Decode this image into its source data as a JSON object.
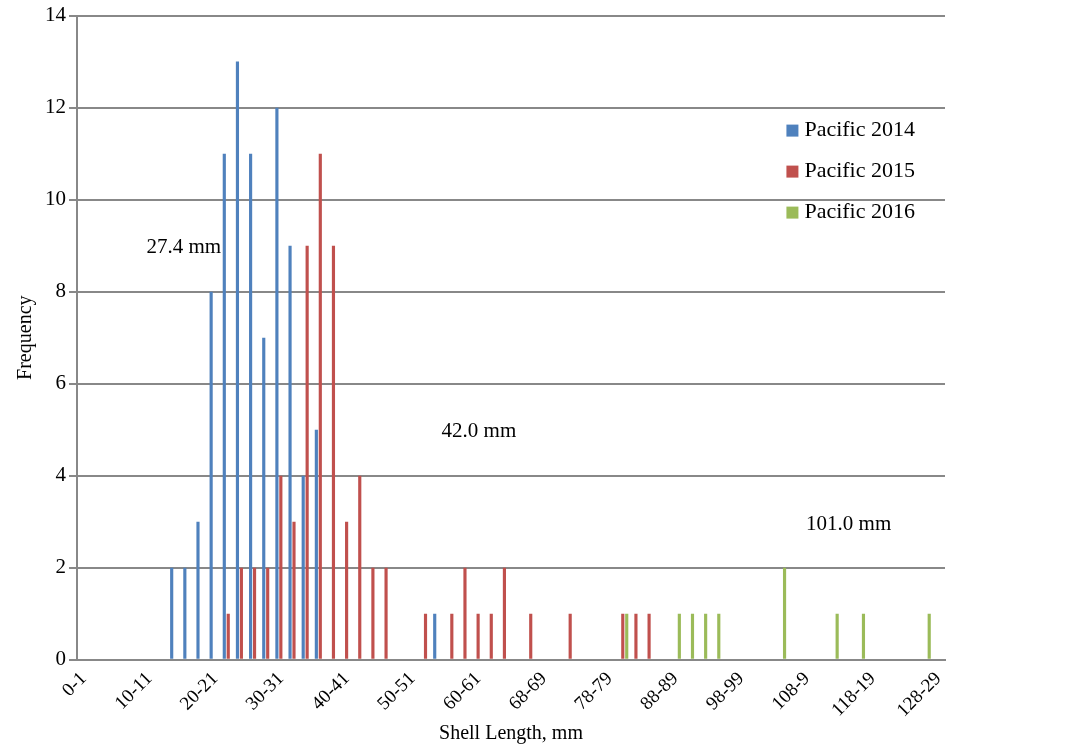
{
  "chart_data": {
    "type": "bar",
    "xlabel": "Shell Length, mm",
    "ylabel": "Frequency",
    "categories": [
      "0-1",
      null,
      null,
      null,
      null,
      "10-11",
      null,
      null,
      null,
      null,
      "20-21",
      null,
      null,
      null,
      null,
      "30-31",
      null,
      null,
      null,
      null,
      "40-41",
      null,
      null,
      null,
      null,
      "50-51",
      null,
      null,
      null,
      null,
      "60-61",
      null,
      null,
      null,
      null,
      "68-69",
      null,
      null,
      null,
      null,
      "78-79",
      null,
      null,
      null,
      null,
      "88-89",
      null,
      null,
      null,
      null,
      "98-99",
      null,
      null,
      null,
      null,
      "108-9",
      null,
      null,
      null,
      null,
      "118-19",
      null,
      null,
      null,
      null,
      "128-29"
    ],
    "series": [
      {
        "name": "Pacific 2014",
        "color": "#4f81bd",
        "values": [
          0,
          0,
          0,
          0,
          0,
          0,
          0,
          2,
          2,
          3,
          8,
          11,
          13,
          11,
          7,
          12,
          9,
          4,
          5,
          0,
          0,
          0,
          0,
          0,
          0,
          0,
          0,
          1,
          0,
          0,
          0,
          0,
          0,
          0,
          0,
          0,
          0,
          0,
          0,
          0,
          0,
          0,
          0,
          0,
          0,
          0,
          0,
          0,
          0,
          0,
          0,
          0,
          0,
          0,
          0,
          0,
          0,
          0,
          0,
          0,
          0,
          0,
          0,
          0,
          0,
          0
        ]
      },
      {
        "name": "Pacific 2015",
        "color": "#c0504d",
        "values": [
          0,
          0,
          0,
          0,
          0,
          0,
          0,
          0,
          0,
          0,
          0,
          1,
          2,
          2,
          2,
          4,
          3,
          9,
          11,
          9,
          3,
          4,
          2,
          2,
          0,
          0,
          1,
          0,
          1,
          2,
          1,
          1,
          2,
          0,
          1,
          0,
          0,
          1,
          0,
          0,
          0,
          1,
          1,
          1,
          0,
          0,
          0,
          0,
          0,
          0,
          0,
          0,
          0,
          0,
          0,
          0,
          0,
          0,
          0,
          0,
          0,
          0,
          0,
          0,
          0,
          0
        ]
      },
      {
        "name": "Pacific 2016",
        "color": "#9bbb59",
        "values": [
          0,
          0,
          0,
          0,
          0,
          0,
          0,
          0,
          0,
          0,
          0,
          0,
          0,
          0,
          0,
          0,
          0,
          0,
          0,
          0,
          0,
          0,
          0,
          0,
          0,
          0,
          0,
          0,
          0,
          0,
          0,
          0,
          0,
          0,
          0,
          0,
          0,
          0,
          0,
          0,
          0,
          1,
          0,
          0,
          0,
          1,
          1,
          1,
          1,
          0,
          0,
          0,
          0,
          2,
          0,
          0,
          0,
          1,
          0,
          1,
          0,
          0,
          0,
          0,
          1,
          0
        ]
      }
    ],
    "annotations": [
      "27.4 mm",
      "42.0 mm",
      "101.0 mm"
    ],
    "ylim": [
      0,
      14
    ],
    "yticks": [
      0,
      2,
      4,
      6,
      8,
      10,
      12,
      14
    ],
    "grid": "y",
    "legend": "top right"
  }
}
